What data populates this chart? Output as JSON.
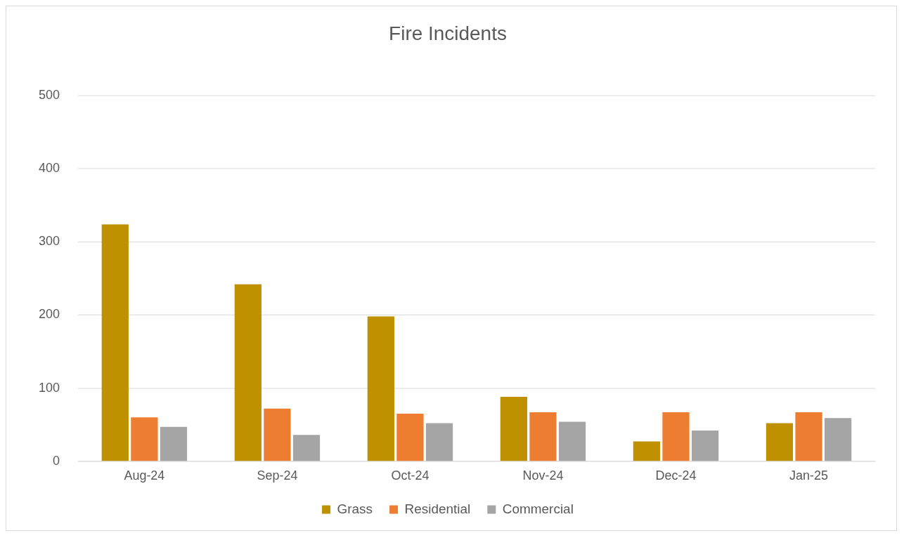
{
  "chart_data": {
    "type": "bar",
    "title": "Fire Incidents",
    "categories": [
      "Aug-24",
      "Sep-24",
      "Oct-24",
      "Nov-24",
      "Dec-24",
      "Jan-25"
    ],
    "series": [
      {
        "name": "Grass",
        "color": "#bf9000",
        "values": [
          324,
          242,
          198,
          88,
          27,
          52
        ]
      },
      {
        "name": "Residential",
        "color": "#ed7d31",
        "values": [
          60,
          72,
          65,
          67,
          67,
          67
        ]
      },
      {
        "name": "Commercial",
        "color": "#a5a5a5",
        "values": [
          47,
          36,
          52,
          54,
          42,
          59
        ]
      }
    ],
    "ylim": [
      0,
      500
    ],
    "yticks": [
      0,
      100,
      200,
      300,
      400,
      500
    ],
    "grid": "y",
    "legend": "bottom"
  }
}
